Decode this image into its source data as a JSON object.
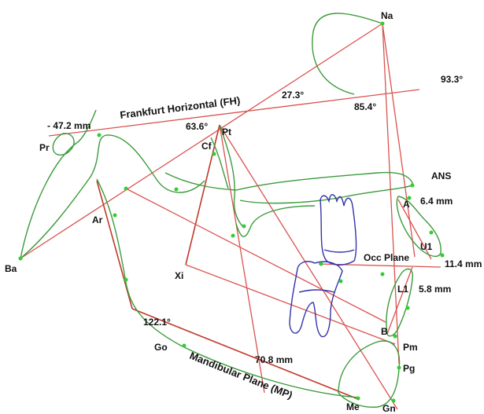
{
  "landmarks": {
    "na": "Na",
    "pr": "Pr",
    "ba": "Ba",
    "ar": "Ar",
    "cf": "Cf",
    "pt": "Pt",
    "xi": "Xi",
    "go": "Go",
    "me": "Me",
    "gn": "Gn",
    "pg": "Pg",
    "pm": "Pm",
    "b": "B",
    "l1": "L1",
    "u1": "U1",
    "a": "A",
    "ans": "ANS"
  },
  "plane_labels": {
    "fh": "Frankfurt Horizontal (FH)",
    "mp": "Mandibular Plane (MP)",
    "occ": "Occ Plane"
  },
  "measurements": {
    "m_neg47": "- 47.2 mm",
    "m_273": "27.3°",
    "m_933": "93.3°",
    "m_854": "85.4°",
    "m_636": "63.6°",
    "m_64": "6.4 mm",
    "m_114": "11.4 mm",
    "m_58": "5.8 mm",
    "m_1221": "122.1°",
    "m_708": "70.8 mm"
  },
  "colors": {
    "construction_line": "#d9534f",
    "anatomy_curve": "#3b9a3b",
    "tooth_outline": "#3333aa",
    "landmark_point": "#33cc33"
  }
}
